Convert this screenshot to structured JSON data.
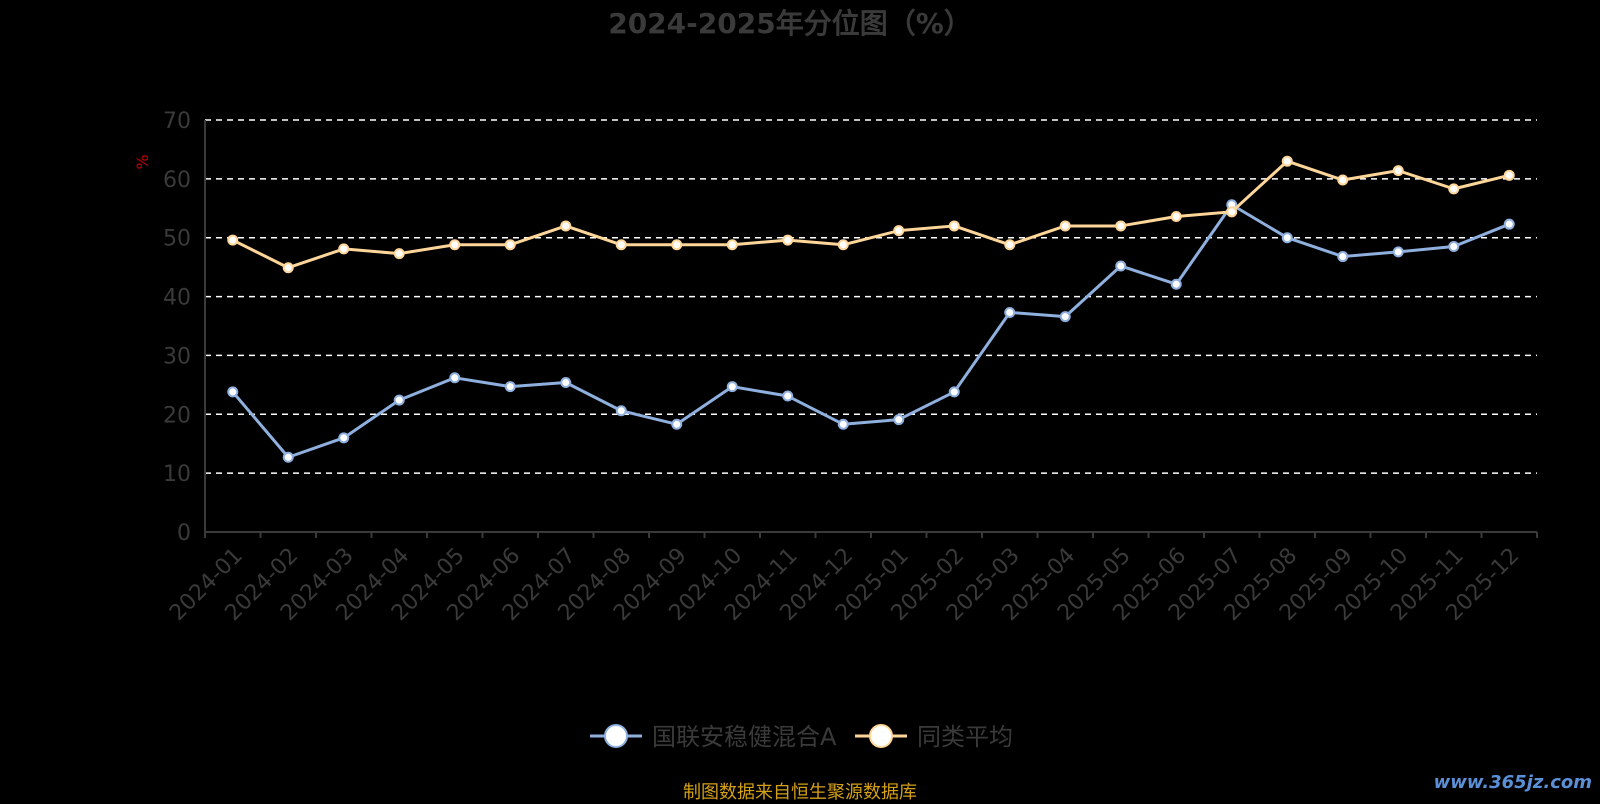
{
  "chart_data": {
    "type": "line",
    "title": "2024-2025年分位图（%）",
    "ylabel": "%",
    "ylim": [
      0,
      70
    ],
    "yticks": [
      0,
      10,
      20,
      30,
      40,
      50,
      60,
      70
    ],
    "grid": true,
    "legend_position": "bottom",
    "categories": [
      "2024-01",
      "2024-02",
      "2024-03",
      "2024-04",
      "2024-05",
      "2024-06",
      "2024-07",
      "2024-08",
      "2024-09",
      "2024-10",
      "2024-11",
      "2024-12",
      "2025-01",
      "2025-02",
      "2025-03",
      "2025-04",
      "2025-05",
      "2025-06",
      "2025-07",
      "2025-08",
      "2025-09",
      "2025-10",
      "2025-11",
      "2025-12"
    ],
    "series": [
      {
        "name": "国联安稳健混合A",
        "color": "#8fb0de",
        "values": [
          23.8,
          12.7,
          16.0,
          22.4,
          26.2,
          24.7,
          25.4,
          20.6,
          18.3,
          24.7,
          23.1,
          18.3,
          19.1,
          23.8,
          37.3,
          36.6,
          45.2,
          42.1,
          55.6,
          50.0,
          46.8,
          47.6,
          48.5,
          52.3
        ]
      },
      {
        "name": "同类平均",
        "color": "#ffd699",
        "values": [
          49.6,
          44.9,
          48.1,
          47.3,
          48.8,
          48.8,
          52.0,
          48.8,
          48.8,
          48.8,
          49.6,
          48.8,
          51.2,
          52.0,
          48.8,
          52.0,
          52.0,
          53.6,
          54.4,
          63.0,
          59.8,
          61.4,
          58.3,
          60.6
        ]
      }
    ]
  },
  "footer": {
    "source": "制图数据来自恒生聚源数据库",
    "watermark": "www.365jz.com"
  },
  "colors": {
    "background": "#000000",
    "axis_text": "#3a3a3a",
    "grid": "#ffffff",
    "source_text": "#d4a017"
  }
}
